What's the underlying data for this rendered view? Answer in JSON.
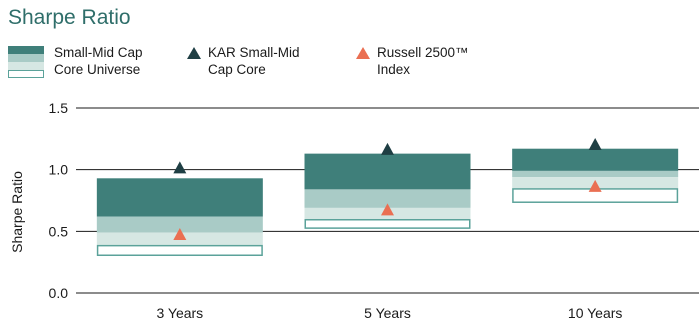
{
  "colors": {
    "title": "#2f6e6a",
    "q1": "#3f7f7a",
    "q2": "#a9cbc6",
    "q3": "#d6e7e3",
    "q4_border": "#5ba29a",
    "kar_marker": "#1f3f44",
    "russell_marker": "#ea6f52",
    "grid": "#1a1a1a"
  },
  "chart_data": {
    "type": "floating-bar",
    "title": "Sharpe Ratio",
    "ylabel": "Sharpe Ratio",
    "xlabel": "",
    "ylim": [
      0.0,
      1.5
    ],
    "yticks": [
      "0.0",
      "0.5",
      "1.0",
      "1.5"
    ],
    "categories": [
      "3 Years",
      "5 Years",
      "10 Years"
    ],
    "legend": {
      "universe": "Small-Mid Cap Core Universe",
      "kar": "KAR Small-Mid Cap Core",
      "russell": "Russell 2500™ Index"
    },
    "universe_quartiles": [
      {
        "q1_top": 0.93,
        "median": 0.62,
        "q3": 0.49,
        "q4_top": 0.39,
        "bottom": 0.3
      },
      {
        "q1_top": 1.13,
        "median": 0.84,
        "q3": 0.69,
        "q4_top": 0.6,
        "bottom": 0.52
      },
      {
        "q1_top": 1.17,
        "median": 0.99,
        "q3": 0.94,
        "q4_top": 0.85,
        "bottom": 0.73
      }
    ],
    "series": [
      {
        "name": "KAR Small-Mid Cap Core",
        "marker": "triangle",
        "values": [
          1.01,
          1.16,
          1.2
        ]
      },
      {
        "name": "Russell 2500™ Index",
        "marker": "triangle",
        "values": [
          0.47,
          0.67,
          0.86
        ]
      }
    ]
  }
}
